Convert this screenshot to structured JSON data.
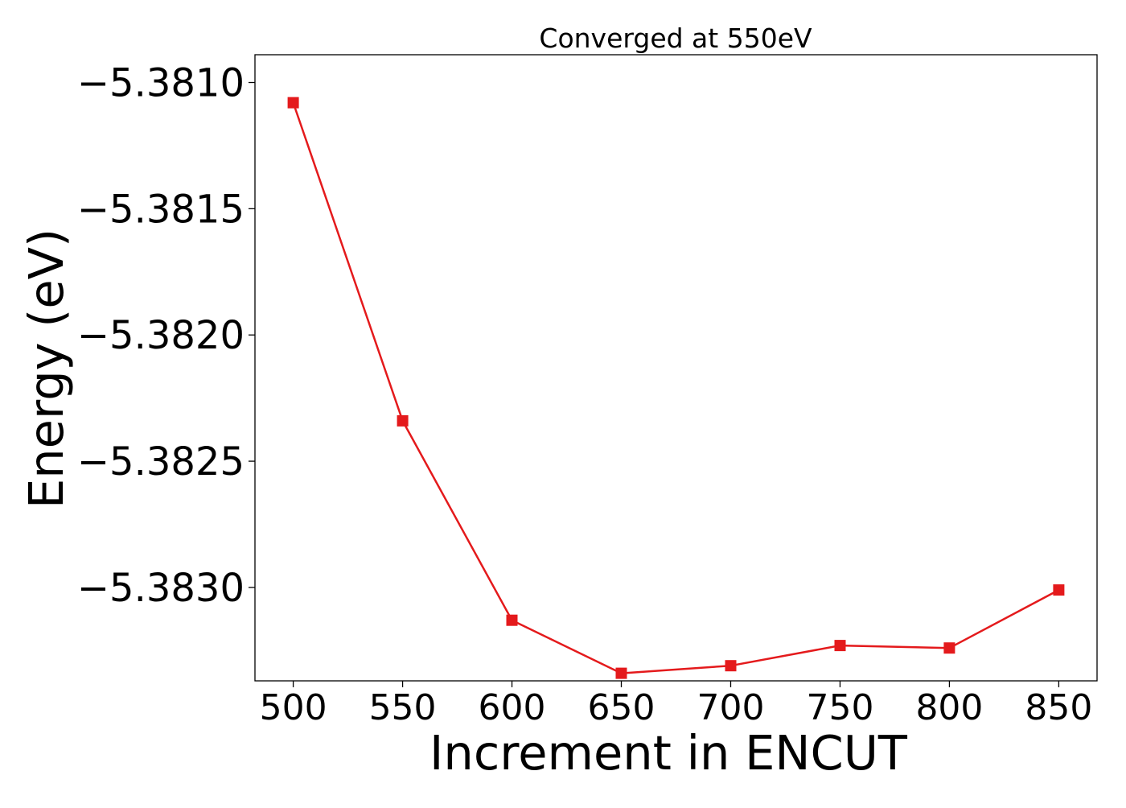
{
  "chart_data": {
    "type": "line",
    "title": "Converged at 550eV",
    "xlabel": "Increment in ENCUT",
    "ylabel": "Energy (eV)",
    "x": [
      500,
      550,
      600,
      650,
      700,
      750,
      800,
      850
    ],
    "series": [
      {
        "values": [
          -5.38108,
          -5.38234,
          -5.38313,
          -5.38334,
          -5.38331,
          -5.38323,
          -5.38324,
          -5.38301
        ],
        "color": "#e41a1c",
        "marker": "square"
      }
    ],
    "xlim": [
      482.5,
      867.5
    ],
    "ylim": [
      -5.38337,
      -5.38089
    ],
    "xticks": [
      500,
      550,
      600,
      650,
      700,
      750,
      800,
      850
    ],
    "xtick_labels": [
      "500",
      "550",
      "600",
      "650",
      "700",
      "750",
      "800",
      "850"
    ],
    "yticks": [
      -5.381,
      -5.3815,
      -5.382,
      -5.3825,
      -5.383
    ],
    "ytick_labels": [
      "−5.3810",
      "−5.3815",
      "−5.3820",
      "−5.3825",
      "−5.3830"
    ],
    "grid": false,
    "legend": false
  }
}
